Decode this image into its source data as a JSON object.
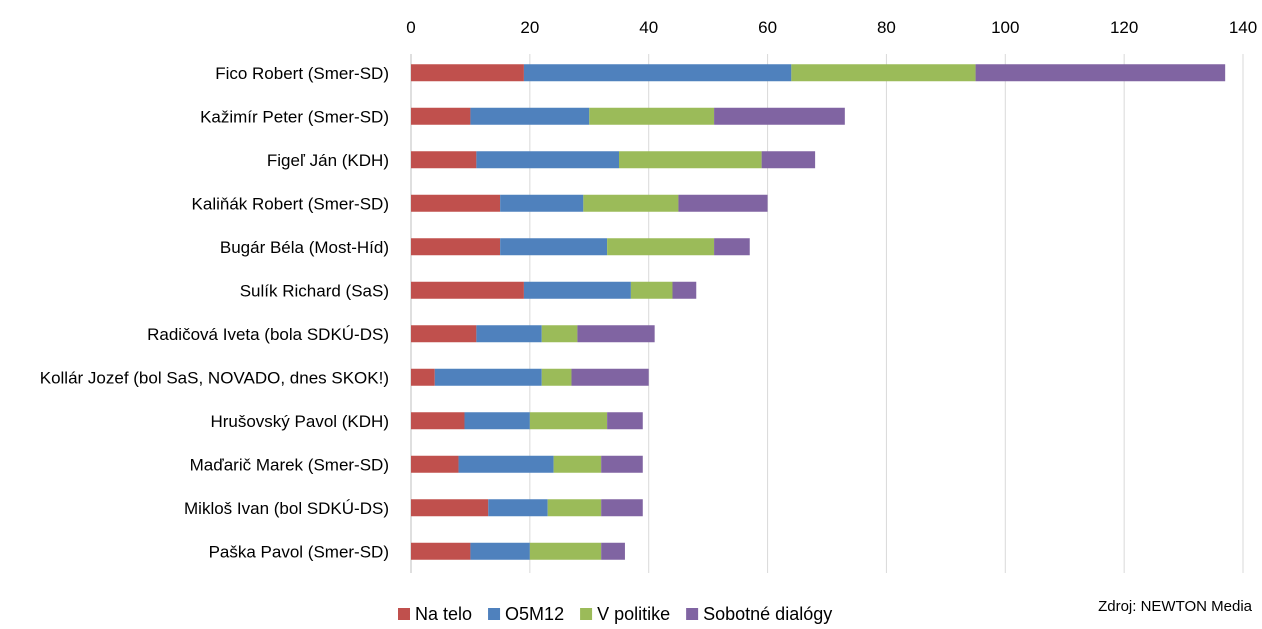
{
  "chart_data": {
    "type": "bar",
    "orientation": "horizontal",
    "stacked": true,
    "title": "",
    "xlabel": "",
    "ylabel": "",
    "xlim": [
      0,
      140
    ],
    "x_ticks": [
      "0",
      "20",
      "40",
      "60",
      "80",
      "100",
      "120",
      "140"
    ],
    "grid": "vertical",
    "legend_position": "bottom",
    "categories": [
      "Fico Robert (Smer-SD)",
      "Kažimír Peter (Smer-SD)",
      "Figeľ Ján (KDH)",
      "Kaliňák Robert (Smer-SD)",
      "Bugár Béla (Most-Híd)",
      "Sulík Richard (SaS)",
      "Radičová Iveta (bola SDKÚ-DS)",
      "Kollár Jozef (bol SaS, NOVADO, dnes SKOK!)",
      "Hrušovský Pavol (KDH)",
      "Maďarič Marek (Smer-SD)",
      "Mikloš Ivan (bol SDKÚ-DS)",
      "Paška Pavol (Smer-SD)"
    ],
    "series": [
      {
        "name": "Na telo",
        "color": "#C0504D",
        "values": [
          19,
          10,
          11,
          15,
          15,
          19,
          11,
          4,
          9,
          8,
          13,
          10
        ]
      },
      {
        "name": "O5M12",
        "color": "#4F81BD",
        "values": [
          45,
          20,
          24,
          14,
          18,
          18,
          11,
          18,
          11,
          16,
          10,
          10
        ]
      },
      {
        "name": "V politike",
        "color": "#9BBB59",
        "values": [
          31,
          21,
          24,
          16,
          18,
          7,
          6,
          5,
          13,
          8,
          9,
          12
        ]
      },
      {
        "name": "Sobotné dialógy",
        "color": "#8064A2",
        "values": [
          42,
          22,
          9,
          15,
          6,
          4,
          13,
          13,
          6,
          7,
          7,
          4
        ]
      }
    ]
  },
  "source_note": "Zdroj: NEWTON Media"
}
